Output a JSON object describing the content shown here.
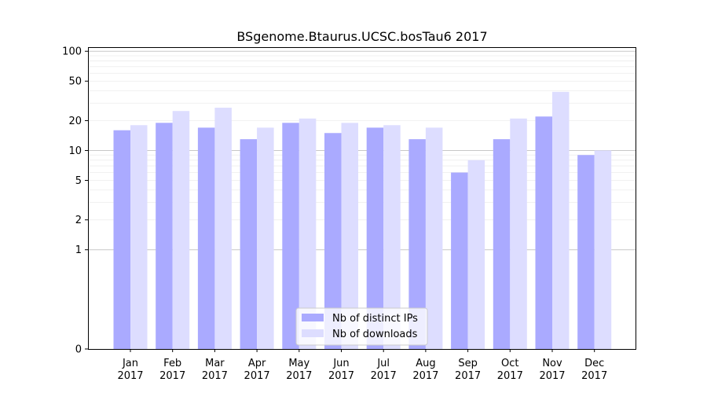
{
  "chart_data": {
    "type": "bar",
    "title": "BSgenome.Btaurus.UCSC.bosTau6 2017",
    "xlabel": "",
    "ylabel": "",
    "scale": "symlog",
    "categories": [
      [
        "Jan",
        "2017"
      ],
      [
        "Feb",
        "2017"
      ],
      [
        "Mar",
        "2017"
      ],
      [
        "Apr",
        "2017"
      ],
      [
        "May",
        "2017"
      ],
      [
        "Jun",
        "2017"
      ],
      [
        "Jul",
        "2017"
      ],
      [
        "Aug",
        "2017"
      ],
      [
        "Sep",
        "2017"
      ],
      [
        "Oct",
        "2017"
      ],
      [
        "Nov",
        "2017"
      ],
      [
        "Dec",
        "2017"
      ]
    ],
    "series": [
      {
        "name": "Nb of distinct IPs",
        "color": "#aaaaff",
        "values": [
          16,
          19,
          17,
          13,
          19,
          15,
          17,
          13,
          6,
          13,
          22,
          9
        ]
      },
      {
        "name": "Nb of downloads",
        "color": "#ddddff",
        "values": [
          18,
          25,
          27,
          17,
          21,
          19,
          18,
          17,
          8,
          21,
          39,
          10
        ]
      }
    ],
    "yticks": [
      0,
      1,
      2,
      5,
      10,
      20,
      50,
      100
    ],
    "ylim": [
      0,
      110
    ],
    "grid": true,
    "legend_position": "bottom-center"
  }
}
